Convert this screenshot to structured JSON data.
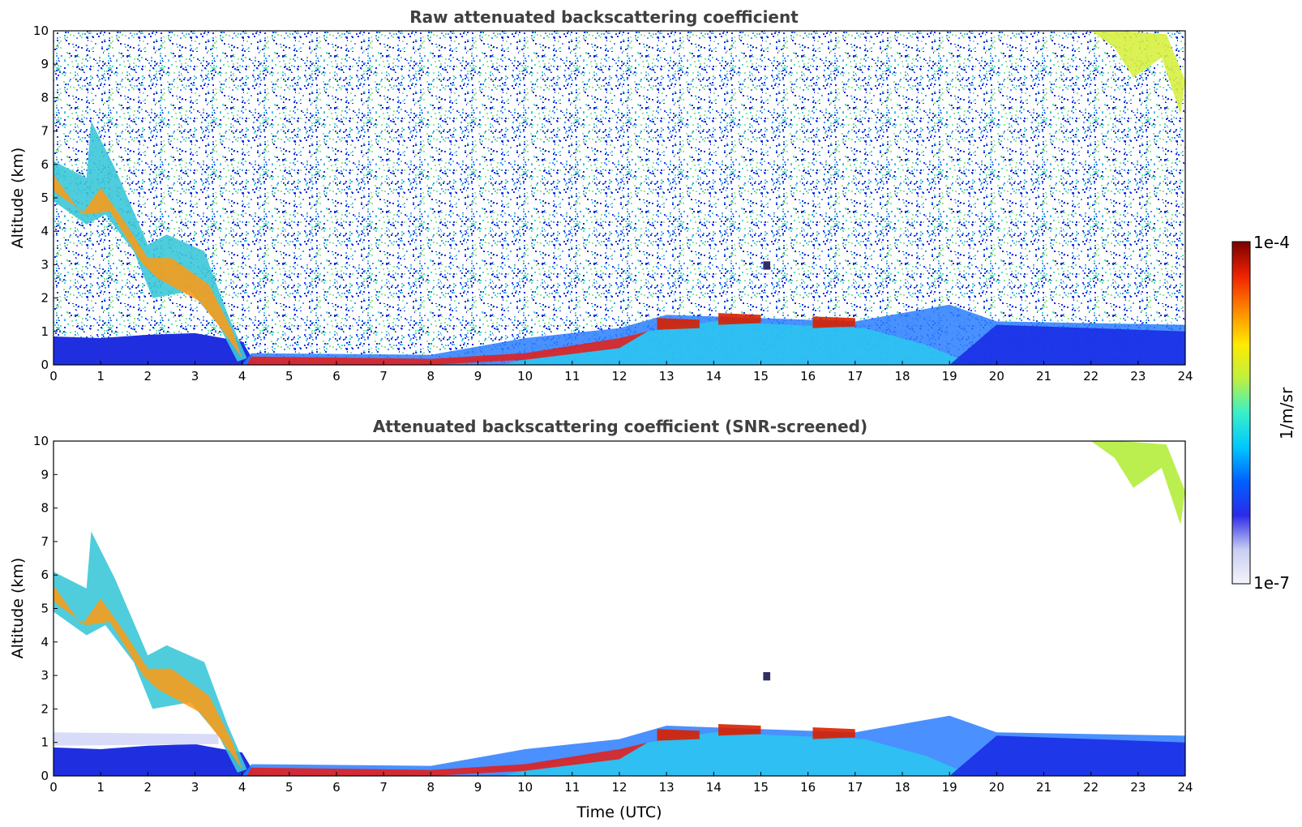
{
  "chart_data": [
    {
      "type": "heatmap",
      "title": "Raw attenuated backscattering coefficient",
      "xlabel": "",
      "ylabel": "Altitude (km)",
      "xlim": [
        0,
        24
      ],
      "ylim": [
        0,
        10
      ],
      "xticks": [
        "0",
        "1",
        "2",
        "3",
        "4",
        "5",
        "6",
        "7",
        "8",
        "9",
        "10",
        "11",
        "12",
        "13",
        "14",
        "15",
        "16",
        "17",
        "18",
        "19",
        "20",
        "21",
        "22",
        "23",
        "24"
      ],
      "yticks": [
        "0",
        "1",
        "2",
        "3",
        "4",
        "5",
        "6",
        "7",
        "8",
        "9",
        "10"
      ],
      "screened": false
    },
    {
      "type": "heatmap",
      "title": "Attenuated backscattering coefficient (SNR-screened)",
      "xlabel": "Time (UTC)",
      "ylabel": "Altitude (km)",
      "xlim": [
        0,
        24
      ],
      "ylim": [
        0,
        10
      ],
      "xticks": [
        "0",
        "1",
        "2",
        "3",
        "4",
        "5",
        "6",
        "7",
        "8",
        "9",
        "10",
        "11",
        "12",
        "13",
        "14",
        "15",
        "16",
        "17",
        "18",
        "19",
        "20",
        "21",
        "22",
        "23",
        "24"
      ],
      "yticks": [
        "0",
        "1",
        "2",
        "3",
        "4",
        "5",
        "6",
        "7",
        "8",
        "9",
        "10"
      ],
      "screened": true
    }
  ],
  "colorbar": {
    "max_label": "1e-4",
    "min_label": "1e-7",
    "units": "1/m/sr",
    "scale": "log",
    "range": [
      1e-07,
      0.0001
    ],
    "colormap": [
      "#f4f4fc",
      "#c8cdf2",
      "#2b2be8",
      "#0060ff",
      "#00c8ff",
      "#39f0c8",
      "#bff040",
      "#ffea00",
      "#ff8800",
      "#ee2200",
      "#7a0000"
    ]
  }
}
